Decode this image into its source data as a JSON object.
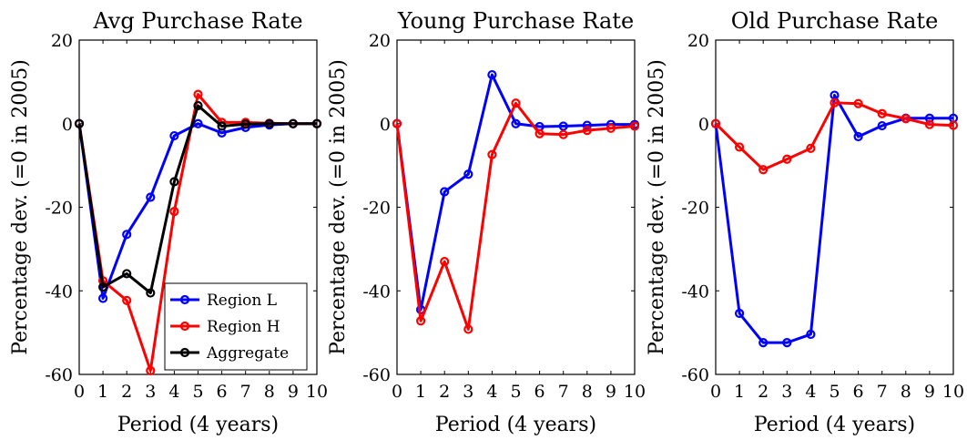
{
  "chart_data": [
    {
      "type": "line",
      "title": "Avg Purchase Rate",
      "xlabel": "Period (4 years)",
      "ylabel": "Percentage dev.  (=0 in 2005)",
      "x": [
        0,
        1,
        2,
        3,
        4,
        5,
        6,
        7,
        8,
        9,
        10
      ],
      "xlim": [
        0,
        10
      ],
      "ylim": [
        -60,
        20
      ],
      "xticks": [
        "0",
        "1",
        "2",
        "3",
        "4",
        "5",
        "6",
        "7",
        "8",
        "9",
        "10"
      ],
      "yticks": [
        "20",
        "0",
        "-20",
        "-40",
        "-60"
      ],
      "legend_position": "bottom-right",
      "series": [
        {
          "name": "Region L",
          "color": "#0000ff",
          "values": [
            0,
            -41.8,
            -26.5,
            -17.6,
            -2.9,
            0,
            -2.2,
            -0.9,
            -0.3,
            0,
            0
          ]
        },
        {
          "name": "Region H",
          "color": "#ff0000",
          "values": [
            0,
            -37.6,
            -42.3,
            -59.1,
            -21.0,
            7.0,
            0.3,
            0.3,
            0.1,
            0,
            0
          ]
        },
        {
          "name": "Aggregate",
          "color": "#000000",
          "values": [
            0,
            -39.1,
            -35.9,
            -40.5,
            -13.9,
            4.3,
            -0.6,
            -0.1,
            0,
            0,
            0
          ]
        }
      ]
    },
    {
      "type": "line",
      "title": "Young Purchase Rate",
      "xlabel": "Period (4 years)",
      "ylabel": "Percentage dev.  (=0 in 2005)",
      "x": [
        0,
        1,
        2,
        3,
        4,
        5,
        6,
        7,
        8,
        9,
        10
      ],
      "xlim": [
        0,
        10
      ],
      "ylim": [
        -60,
        20
      ],
      "xticks": [
        "0",
        "1",
        "2",
        "3",
        "4",
        "5",
        "6",
        "7",
        "8",
        "9",
        "10"
      ],
      "yticks": [
        "20",
        "0",
        "-20",
        "-40",
        "-60"
      ],
      "series": [
        {
          "name": "Region L",
          "color": "#0000ff",
          "values": [
            0,
            -44.5,
            -16.3,
            -12.1,
            11.7,
            0,
            -0.7,
            -0.6,
            -0.4,
            -0.2,
            -0.2
          ]
        },
        {
          "name": "Region H",
          "color": "#ff0000",
          "values": [
            0,
            -47.2,
            -33.0,
            -49.2,
            -7.4,
            4.9,
            -2.4,
            -2.6,
            -1.6,
            -1.1,
            -0.6
          ]
        }
      ]
    },
    {
      "type": "line",
      "title": "Old Purchase Rate",
      "xlabel": "Period (4 years)",
      "ylabel": "Percentage dev.  (=0 in 2005)",
      "x": [
        0,
        1,
        2,
        3,
        4,
        5,
        6,
        7,
        8,
        9,
        10
      ],
      "xlim": [
        0,
        10
      ],
      "ylim": [
        -60,
        20
      ],
      "xticks": [
        "0",
        "1",
        "2",
        "3",
        "4",
        "5",
        "6",
        "7",
        "8",
        "9",
        "10"
      ],
      "yticks": [
        "20",
        "0",
        "-20",
        "-40",
        "-60"
      ],
      "series": [
        {
          "name": "Region L",
          "color": "#0000ff",
          "values": [
            0,
            -45.4,
            -52.4,
            -52.4,
            -50.4,
            6.8,
            -3.1,
            -0.5,
            1.3,
            1.3,
            1.3
          ]
        },
        {
          "name": "Region H",
          "color": "#ff0000",
          "values": [
            0,
            -5.6,
            -11.0,
            -8.5,
            -5.9,
            5.0,
            4.8,
            2.4,
            1.2,
            -0.2,
            -0.4
          ]
        }
      ]
    }
  ]
}
